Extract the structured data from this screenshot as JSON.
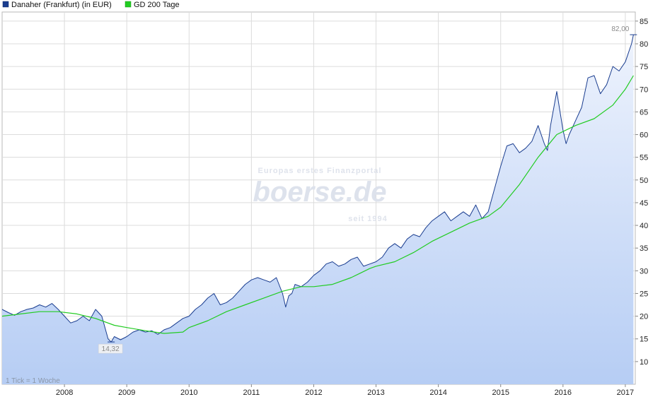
{
  "chart_data": {
    "type": "line",
    "title": "",
    "xlabel": "",
    "ylabel": "",
    "x_ticks": [
      "2008",
      "2009",
      "2010",
      "2011",
      "2012",
      "2013",
      "2014",
      "2015",
      "2016",
      "2017"
    ],
    "y_ticks": [
      10,
      15,
      20,
      25,
      30,
      35,
      40,
      45,
      50,
      55,
      60,
      65,
      70,
      75,
      80,
      85
    ],
    "xlim": [
      2007.0,
      2017.16
    ],
    "ylim": [
      5,
      87
    ],
    "grid": true,
    "legend_position": "top-left",
    "series": [
      {
        "name": "Danaher (Frankfurt) (in EUR)",
        "color": "#1a3d8f",
        "fill": true,
        "x": [
          2007.0,
          2007.1,
          2007.2,
          2007.3,
          2007.4,
          2007.5,
          2007.6,
          2007.7,
          2007.8,
          2007.9,
          2008.0,
          2008.1,
          2008.2,
          2008.3,
          2008.4,
          2008.5,
          2008.6,
          2008.7,
          2008.75,
          2008.8,
          2008.9,
          2009.0,
          2009.1,
          2009.2,
          2009.3,
          2009.4,
          2009.5,
          2009.6,
          2009.7,
          2009.8,
          2009.9,
          2010.0,
          2010.1,
          2010.2,
          2010.3,
          2010.4,
          2010.5,
          2010.6,
          2010.7,
          2010.8,
          2010.9,
          2011.0,
          2011.1,
          2011.2,
          2011.3,
          2011.4,
          2011.5,
          2011.55,
          2011.6,
          2011.65,
          2011.7,
          2011.8,
          2011.9,
          2012.0,
          2012.1,
          2012.2,
          2012.3,
          2012.4,
          2012.5,
          2012.6,
          2012.7,
          2012.8,
          2012.9,
          2013.0,
          2013.1,
          2013.2,
          2013.3,
          2013.4,
          2013.5,
          2013.6,
          2013.7,
          2013.8,
          2013.9,
          2014.0,
          2014.1,
          2014.2,
          2014.3,
          2014.4,
          2014.5,
          2014.6,
          2014.7,
          2014.8,
          2014.9,
          2015.0,
          2015.1,
          2015.2,
          2015.3,
          2015.4,
          2015.5,
          2015.6,
          2015.7,
          2015.75,
          2015.8,
          2015.9,
          2016.0,
          2016.05,
          2016.1,
          2016.2,
          2016.3,
          2016.4,
          2016.5,
          2016.6,
          2016.7,
          2016.8,
          2016.9,
          2017.0,
          2017.05,
          2017.1,
          2017.13
        ],
        "y": [
          21.5,
          20.8,
          20.2,
          21.0,
          21.5,
          21.8,
          22.5,
          22.0,
          22.8,
          21.5,
          20.0,
          18.5,
          19.0,
          20.0,
          19.0,
          21.5,
          20.0,
          15.0,
          14.32,
          15.5,
          14.8,
          15.5,
          16.5,
          17.0,
          16.5,
          16.8,
          16.0,
          17.0,
          17.5,
          18.5,
          19.5,
          20.0,
          21.5,
          22.5,
          24.0,
          25.0,
          22.5,
          23.0,
          24.0,
          25.5,
          27.0,
          28.0,
          28.5,
          28.0,
          27.5,
          28.5,
          25.0,
          22.0,
          24.5,
          25.0,
          27.0,
          26.5,
          27.5,
          29.0,
          30.0,
          31.5,
          32.0,
          31.0,
          31.5,
          32.5,
          33.0,
          31.0,
          31.5,
          32.0,
          33.0,
          35.0,
          36.0,
          35.0,
          37.0,
          38.0,
          37.5,
          39.5,
          41.0,
          42.0,
          43.0,
          41.0,
          42.0,
          43.0,
          42.0,
          44.5,
          41.5,
          43.0,
          48.0,
          53.0,
          57.5,
          58.0,
          56.0,
          57.0,
          58.5,
          62.0,
          58.0,
          56.5,
          62.0,
          69.5,
          61.0,
          58.0,
          60.0,
          63.0,
          66.0,
          72.5,
          73.0,
          69.0,
          71.0,
          75.0,
          74.0,
          76.0,
          78.0,
          80.0,
          82.0
        ]
      },
      {
        "name": "GD 200 Tage",
        "color": "#22cc22",
        "fill": false,
        "x": [
          2007.0,
          2007.3,
          2007.6,
          2007.9,
          2008.2,
          2008.5,
          2008.8,
          2009.0,
          2009.3,
          2009.6,
          2009.9,
          2010.0,
          2010.3,
          2010.6,
          2010.9,
          2011.2,
          2011.5,
          2011.8,
          2012.0,
          2012.3,
          2012.6,
          2012.9,
          2013.0,
          2013.3,
          2013.6,
          2013.9,
          2014.2,
          2014.5,
          2014.8,
          2015.0,
          2015.3,
          2015.6,
          2015.9,
          2016.2,
          2016.5,
          2016.8,
          2017.0,
          2017.13
        ],
        "y": [
          20.0,
          20.5,
          21.0,
          21.0,
          20.5,
          19.5,
          18.0,
          17.5,
          16.8,
          16.2,
          16.5,
          17.5,
          19.0,
          21.0,
          22.5,
          24.0,
          25.5,
          26.5,
          26.5,
          27.0,
          28.5,
          30.5,
          31.0,
          32.0,
          34.0,
          36.5,
          38.5,
          40.5,
          42.0,
          44.0,
          49.0,
          55.0,
          60.0,
          62.0,
          63.5,
          66.5,
          70.0,
          73.0
        ]
      }
    ],
    "annotations": {
      "max_value_label": "82,00",
      "min_value_label": "14,32",
      "max_x": 2017.13,
      "max_y": 82.0,
      "min_x": 2008.75,
      "min_y": 14.32
    }
  },
  "legend": {
    "items": [
      {
        "label": "Danaher (Frankfurt) (in EUR)",
        "color": "#1a3d8f"
      },
      {
        "label": "GD 200 Tage",
        "color": "#22cc22"
      }
    ]
  },
  "watermark": {
    "top": "Europas erstes Finanzportal",
    "brand": "boerse.de",
    "bottom": "seit 1994"
  },
  "footnote": "1 Tick = 1 Woche"
}
